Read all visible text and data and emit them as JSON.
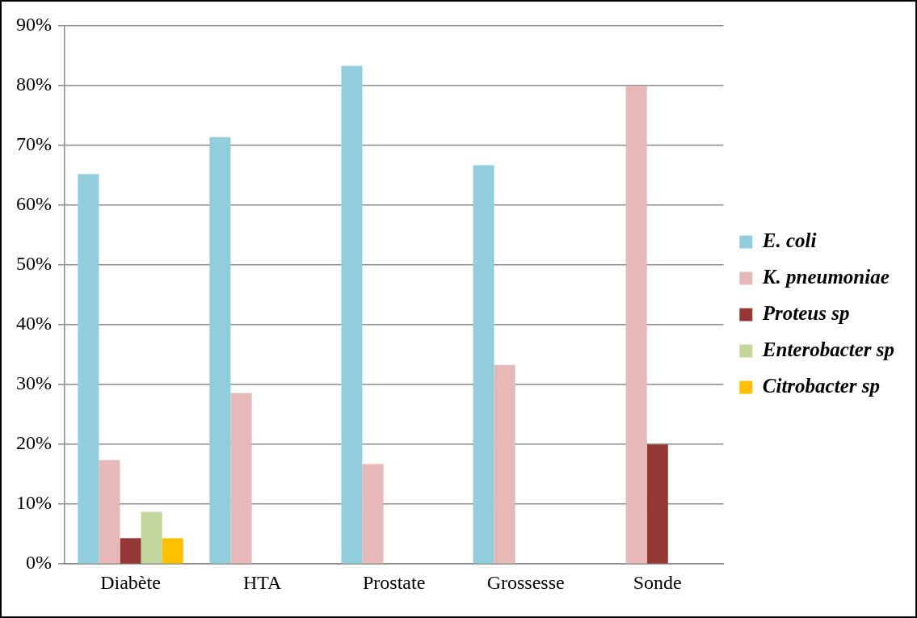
{
  "chart_data": {
    "type": "bar",
    "categories": [
      "Diabète",
      "HTA",
      "Prostate",
      "Grossesse",
      "Sonde"
    ],
    "series": [
      {
        "name": "E. coli",
        "color": "#92cddc",
        "values": [
          65.2,
          71.4,
          83.3,
          66.7,
          null
        ]
      },
      {
        "name": "K. pneumoniae",
        "color": "#e6b9b8",
        "values": [
          17.4,
          28.6,
          16.7,
          33.3,
          80
        ]
      },
      {
        "name": "Proteus sp",
        "color": "#953735",
        "values": [
          4.3,
          null,
          null,
          null,
          20
        ]
      },
      {
        "name": "Enterobacter sp",
        "color": "#c3d69b",
        "values": [
          8.7,
          null,
          null,
          null,
          null
        ]
      },
      {
        "name": "Citrobacter sp",
        "color": "#ffc000",
        "values": [
          4.3,
          null,
          null,
          null,
          null
        ]
      }
    ],
    "ylim": [
      0,
      90
    ],
    "yticks": [
      {
        "value": 0,
        "label": "0%"
      },
      {
        "value": 10,
        "label": "10%"
      },
      {
        "value": 20,
        "label": "20%"
      },
      {
        "value": 30,
        "label": "30%"
      },
      {
        "value": 40,
        "label": "40%"
      },
      {
        "value": 50,
        "label": "50%"
      },
      {
        "value": 60,
        "label": "60%"
      },
      {
        "value": 70,
        "label": "70%"
      },
      {
        "value": 80,
        "label": "80%"
      },
      {
        "value": 90,
        "label": "90%"
      }
    ],
    "grid": "y",
    "legend": "right"
  }
}
